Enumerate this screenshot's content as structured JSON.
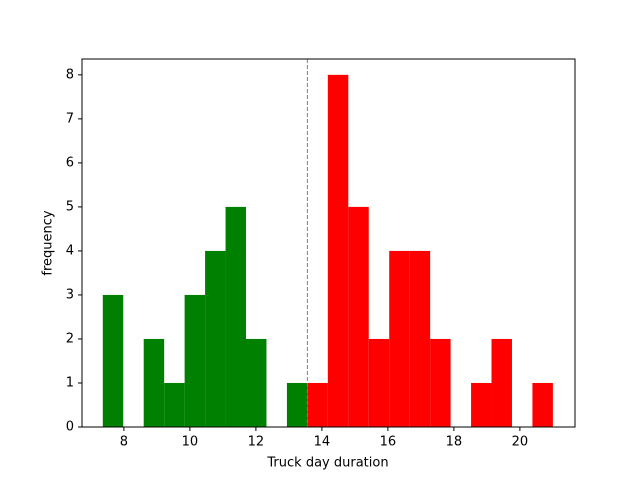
{
  "chart_data": {
    "type": "histogram",
    "xlabel": "Truck day duration",
    "ylabel": "frequency",
    "xlim": [
      6.73,
      21.67
    ],
    "ylim": [
      0,
      8.36
    ],
    "xticks": [
      8,
      10,
      12,
      14,
      16,
      18,
      20
    ],
    "yticks": [
      0,
      1,
      2,
      3,
      4,
      5,
      6,
      7,
      8
    ],
    "vline": 13.56,
    "series": [
      {
        "color": "#008000",
        "bins": [
          7.36,
          7.98,
          8.6,
          9.22,
          9.84,
          10.46,
          11.08,
          11.7,
          12.32,
          12.94,
          13.56
        ],
        "values": [
          3,
          0,
          2,
          1,
          3,
          4,
          5,
          2,
          0,
          1
        ]
      },
      {
        "color": "#ff0000",
        "bins": [
          13.56,
          14.18,
          14.8,
          15.42,
          16.04,
          16.66,
          17.28,
          17.9,
          18.52,
          19.14,
          19.76,
          20.38,
          21.0
        ],
        "values": [
          1,
          8,
          5,
          2,
          4,
          4,
          2,
          0,
          1,
          2,
          0,
          1
        ]
      }
    ]
  }
}
